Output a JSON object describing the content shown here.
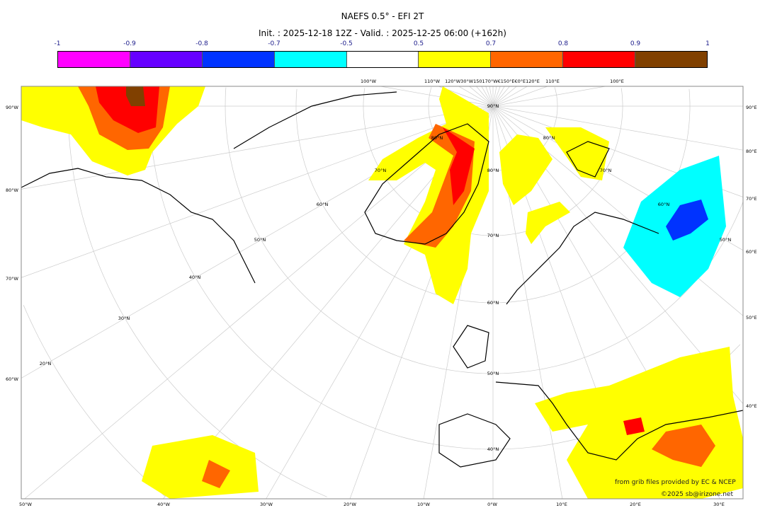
{
  "title": "NAEFS 0.5° - EFI 2T",
  "subtitle": "Init. : 2025-12-18 12Z - Valid. : 2025-12-25 06:00 (+162h)",
  "colorbar": {
    "ticks": [
      "-1",
      "-0.9",
      "-0.8",
      "-0.7",
      "-0.5",
      "0.5",
      "0.7",
      "0.8",
      "0.9",
      "1"
    ],
    "colors": [
      "#ff00ff",
      "#6600ff",
      "#0033ff",
      "#00ffff",
      "#ffffff",
      "#ffff00",
      "#ff6600",
      "#ff0000",
      "#804000"
    ]
  },
  "map": {
    "left_labels": [
      "90°W",
      "80°W",
      "70°W",
      "60°W"
    ],
    "right_labels": [
      "90°E",
      "80°E",
      "70°E",
      "60°E",
      "50°E",
      "40°E"
    ],
    "bottom_labels": [
      "50°W",
      "40°W",
      "30°W",
      "20°W",
      "10°W",
      "0°W",
      "10°E",
      "20°E",
      "30°E"
    ],
    "top_labels": [
      "100°W",
      "110°W",
      "120°W30°W150170°W€150°E€0°E120°E",
      "110°E",
      "100°E"
    ],
    "lat_labels": [
      "90°N",
      "80°N",
      "70°N",
      "60°N",
      "50°N",
      "40°N",
      "70°N",
      "60°N",
      "50°N",
      "40°N",
      "30°N",
      "20°N",
      "80°N",
      "80°N",
      "70°N",
      "60°N",
      "50°N"
    ]
  },
  "credits": {
    "source": "from grib files provided by EC & NCEP",
    "copyright": "©2025 sb@irizone.net"
  }
}
